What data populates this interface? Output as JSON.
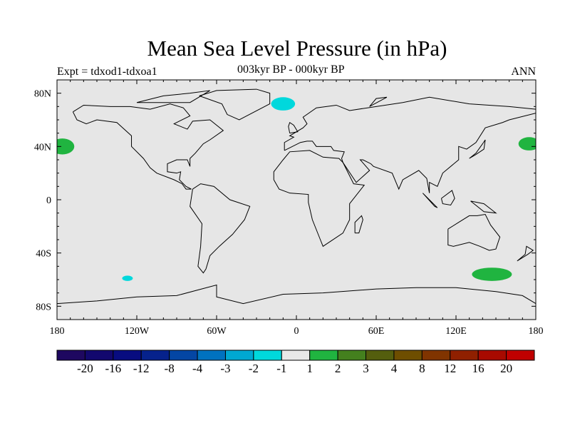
{
  "chart_data": {
    "type": "map",
    "title": "Mean Sea Level Pressure (in hPa)",
    "left_label": "Expt = tdxod1-tdxoa1",
    "center_label": "003kyr BP - 000kyr BP",
    "right_label": "ANN",
    "lon_range": [
      -180,
      180
    ],
    "lat_range": [
      -90,
      90
    ],
    "x_ticks": [
      {
        "v": -180,
        "label": "180"
      },
      {
        "v": -120,
        "label": "120W"
      },
      {
        "v": -60,
        "label": "60W"
      },
      {
        "v": 0,
        "label": "0"
      },
      {
        "v": 60,
        "label": "60E"
      },
      {
        "v": 120,
        "label": "120E"
      },
      {
        "v": 180,
        "label": "180"
      }
    ],
    "y_ticks": [
      {
        "v": 80,
        "label": "80N"
      },
      {
        "v": 40,
        "label": "40N"
      },
      {
        "v": 0,
        "label": "0"
      },
      {
        "v": -40,
        "label": "40S"
      },
      {
        "v": -80,
        "label": "80S"
      }
    ],
    "background_color": "#e6e6e6",
    "colorbar": {
      "levels": [
        "-20",
        "-16",
        "-12",
        "-8",
        "-4",
        "-3",
        "-2",
        "-1",
        "1",
        "2",
        "3",
        "4",
        "8",
        "12",
        "16",
        "20"
      ],
      "colors": [
        "#1e0860",
        "#12086e",
        "#080c80",
        "#06228c",
        "#0446a4",
        "#0072c0",
        "#00a8d2",
        "#00d8dc",
        "#e8e8e8",
        "#20b440",
        "#44801e",
        "#545e0e",
        "#6e4e00",
        "#803400",
        "#902000",
        "#a80a00",
        "#c00000"
      ]
    },
    "anomaly_regions": [
      {
        "name": "north-atlantic-iceland",
        "lon": -10,
        "lat": 72,
        "rlon": 9,
        "rlat": 5,
        "bin": "-2 to -1",
        "color": "#00d8dc"
      },
      {
        "name": "north-pacific-west-of-dateline",
        "lon": -176,
        "lat": 40,
        "rlon": 9,
        "rlat": 6,
        "bin": "1 to 2",
        "color": "#20b440"
      },
      {
        "name": "north-pacific-east-of-dateline",
        "lon": 175,
        "lat": 42,
        "rlon": 8,
        "rlat": 5,
        "bin": "1 to 2",
        "color": "#20b440"
      },
      {
        "name": "south-pacific",
        "lon": -127,
        "lat": -59,
        "rlon": 4,
        "rlat": 2,
        "bin": "-2 to -1",
        "color": "#00d8dc"
      },
      {
        "name": "southern-ocean-south-of-australia",
        "lon": 147,
        "lat": -56,
        "rlon": 15,
        "rlat": 5,
        "bin": "1 to 2",
        "color": "#20b440"
      }
    ]
  }
}
